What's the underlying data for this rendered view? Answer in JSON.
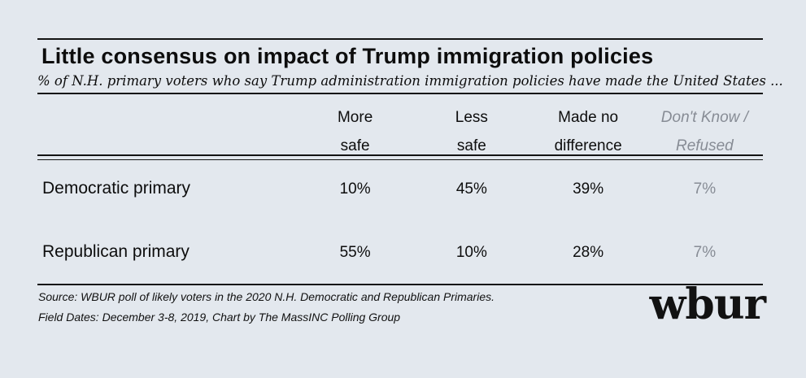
{
  "theme": {
    "background": "#e3e8ee",
    "text": "#0d0d0d",
    "muted_text": "#878c95",
    "rule": "#141414"
  },
  "header": {
    "title": "Little consensus on impact of Trump immigration policies",
    "subtitle": "% of N.H. primary voters who say Trump administration immigration policies have made the United States  ..."
  },
  "table": {
    "header_display": [
      "More\nsafe",
      "Less\nsafe",
      "Made no\ndifference",
      "Don't Know /\nRefused"
    ]
  },
  "chart_data": {
    "type": "table",
    "title": "Little consensus on impact of Trump immigration policies",
    "subtitle": "% of N.H. primary voters who say Trump administration immigration policies have made the United States ...",
    "columns": [
      "More safe",
      "Less safe",
      "Made no difference",
      "Don't Know / Refused"
    ],
    "rows": [
      {
        "label": "Democratic primary",
        "values": [
          "10%",
          "45%",
          "39%",
          "7%"
        ]
      },
      {
        "label": "Republican primary",
        "values": [
          "55%",
          "10%",
          "28%",
          "7%"
        ]
      }
    ],
    "units": "percent of N.H. primary voters",
    "layout": {
      "muted_last_column": true,
      "grid": "off"
    }
  },
  "footer": {
    "source": "Source: WBUR poll of likely voters in the 2020 N.H. Democratic and Republican Primaries.",
    "field_dates": "Field Dates: December 3-8, 2019, Chart by The MassINC Polling Group",
    "logo_text": "wbur"
  }
}
